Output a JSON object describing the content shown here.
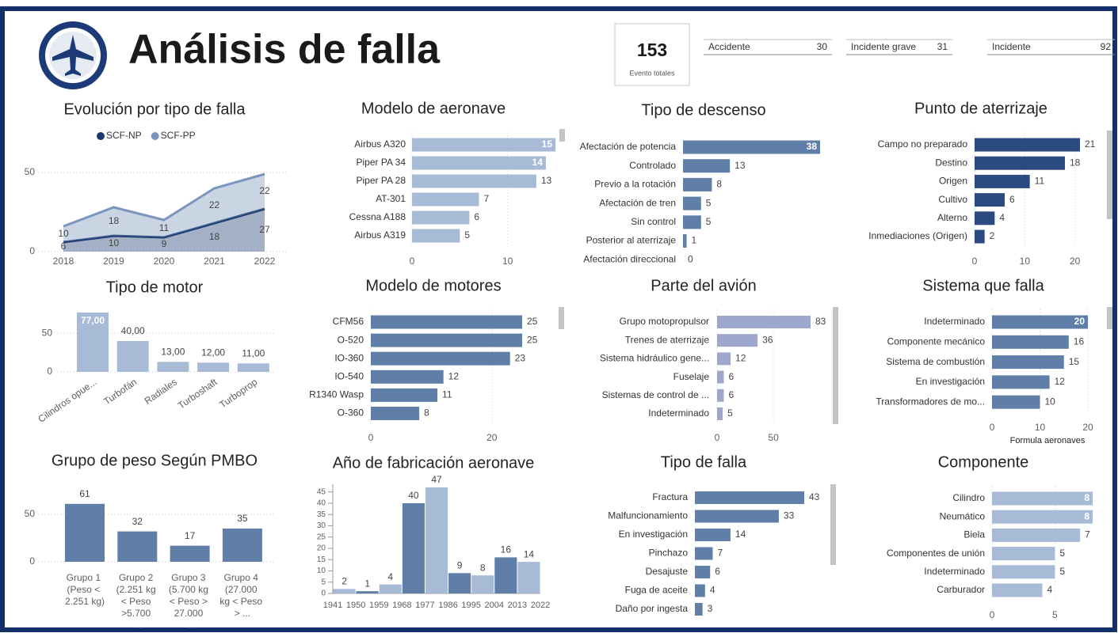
{
  "header": {
    "title": "Análisis de falla"
  },
  "kpi": {
    "value": 153,
    "label": "Evento totales"
  },
  "cards": [
    {
      "label": "Accidente",
      "value": 30
    },
    {
      "label": "Incidente grave",
      "value": 31
    },
    {
      "label": "Incidente",
      "value": 92
    }
  ],
  "chart_data": [
    {
      "type": "area",
      "title": "Evolución por tipo de falla",
      "stacked": true,
      "categories": [
        "2018",
        "2019",
        "2020",
        "2021",
        "2022"
      ],
      "series": [
        {
          "name": "SCF-NP",
          "color": "#1b3a6f",
          "values": [
            6,
            10,
            9,
            18,
            27
          ]
        },
        {
          "name": "SCF-PP",
          "color": "#7b96bc",
          "values": [
            10,
            18,
            11,
            22,
            22
          ]
        }
      ],
      "ylim": [
        0,
        55
      ],
      "yticks": [
        0,
        50
      ],
      "grid": true
    },
    {
      "type": "hbar",
      "title": "Modelo de aeronave",
      "categories": [
        "Airbus A320",
        "Piper PA 34",
        "Piper PA 28",
        "AT-301",
        "Cessna A188",
        "Airbus A319"
      ],
      "values": [
        15,
        14,
        13,
        7,
        6,
        5
      ],
      "color": "#a8bbd6",
      "xlim": [
        0,
        15
      ],
      "xticks": [
        0,
        10
      ],
      "grid": true
    },
    {
      "type": "hbar",
      "title": "Tipo de descenso",
      "categories": [
        "Afectación de potencia",
        "Controlado",
        "Previo a la rotación",
        "Afectación de tren",
        "Sin control",
        "Posterior al aterrizaje",
        "Afectación direccional"
      ],
      "values": [
        38,
        13,
        8,
        5,
        5,
        1,
        0
      ],
      "color": "#5f7fa8",
      "xlim": [
        0,
        38
      ]
    },
    {
      "type": "hbar",
      "title": "Punto de aterrizaje",
      "categories": [
        "Campo no preparado",
        "Destino",
        "Origen",
        "Cultivo",
        "Alterno",
        "Inmediaciones (Origen)"
      ],
      "values": [
        21,
        18,
        11,
        6,
        4,
        2
      ],
      "color": "#2b4a80",
      "xlim": [
        0,
        21
      ],
      "xticks": [
        0,
        10,
        20
      ],
      "grid": true
    },
    {
      "type": "vbar",
      "title": "Tipo de motor",
      "categories": [
        "Cilindros opue...",
        "Turbofán",
        "Radiales",
        "Turboshaft",
        "Turboprop"
      ],
      "values": [
        77,
        40,
        13,
        12,
        11
      ],
      "value_labels": [
        "77,00",
        "40,00",
        "13,00",
        "12,00",
        "11,00"
      ],
      "color": "#a8bbd6",
      "ylim": [
        0,
        80
      ],
      "yticks": [
        0,
        50
      ],
      "grid": true
    },
    {
      "type": "hbar",
      "title": "Modelo de motores",
      "categories": [
        "CFM56",
        "O-520",
        "IO-360",
        "IO-540",
        "R1340 Wasp",
        "O-360"
      ],
      "values": [
        25,
        25,
        23,
        12,
        11,
        8
      ],
      "color": "#5f7fa8",
      "xlim": [
        0,
        25
      ],
      "xticks": [
        0,
        20
      ],
      "grid": true
    },
    {
      "type": "hbar",
      "title": "Parte del avión",
      "categories": [
        "Grupo motopropulsor",
        "Trenes de aterrizaje",
        "Sistema hidráulico gene...",
        "Fuselaje",
        "Sistemas de control de ...",
        "Indeterminado"
      ],
      "values": [
        83,
        36,
        12,
        6,
        6,
        5
      ],
      "color": "#9da8cc",
      "xlim": [
        0,
        83
      ],
      "xticks": [
        0,
        50
      ],
      "grid": true
    },
    {
      "type": "hbar",
      "title": "Sistema que falla",
      "categories": [
        "Indeterminado",
        "Componente mecánico",
        "Sistema de combustión",
        "En investigación",
        "Transformadores de mo..."
      ],
      "values": [
        20,
        16,
        15,
        12,
        10
      ],
      "color": "#5f7fa8",
      "xlim": [
        0,
        20
      ],
      "xticks": [
        0,
        10,
        20
      ],
      "grid": true,
      "xlabel": "Formula aeronaves"
    },
    {
      "type": "vbar",
      "title": "Grupo de peso Según PMBO",
      "categories": [
        "Grupo 1 (Peso < 2.251 kg)",
        "Grupo 2 (2.251 kg < Peso >5.700 ...",
        "Grupo 3 (5.700 kg < Peso > 27.000 ...",
        "Grupo 4 (27.000 kg < Peso > ..."
      ],
      "values": [
        61,
        32,
        17,
        35
      ],
      "color": "#5f7fa8",
      "ylim": [
        0,
        65
      ],
      "yticks": [
        0,
        50
      ],
      "grid": true
    },
    {
      "type": "histogram",
      "title": "Año de fabricación aeronave",
      "bins": [
        1941,
        1950,
        1959,
        1968,
        1977,
        1986,
        1995,
        2004,
        2013,
        2022
      ],
      "values": [
        2,
        1,
        4,
        40,
        47,
        9,
        8,
        16,
        14
      ],
      "colors": [
        "#a8bbd6",
        "#5f7fa8",
        "#a8bbd6",
        "#5f7fa8",
        "#a8bbd6",
        "#5f7fa8",
        "#a8bbd6",
        "#5f7fa8",
        "#a8bbd6"
      ],
      "xlim": [
        1941,
        2022
      ],
      "ylim": [
        0,
        47
      ],
      "yticks": [
        0,
        5,
        10,
        15,
        20,
        25,
        30,
        35,
        40,
        45
      ]
    },
    {
      "type": "hbar",
      "title": "Tipo de falla",
      "categories": [
        "Fractura",
        "Malfuncionamiento",
        "En investigación",
        "Pinchazo",
        "Desajuste",
        "Fuga de aceite",
        "Daño por ingesta"
      ],
      "values": [
        43,
        33,
        14,
        7,
        6,
        4,
        3
      ],
      "color": "#5f7fa8",
      "xlim": [
        0,
        43
      ]
    },
    {
      "type": "hbar",
      "title": "Componente",
      "categories": [
        "Cilindro",
        "Neumático",
        "Biela",
        "Componentes de unión",
        "Indeterminado",
        "Carburador"
      ],
      "values": [
        8,
        8,
        7,
        5,
        5,
        4
      ],
      "color": "#a8bbd6",
      "xlim": [
        0,
        8
      ],
      "xticks": [
        0,
        5
      ],
      "grid": true
    }
  ]
}
